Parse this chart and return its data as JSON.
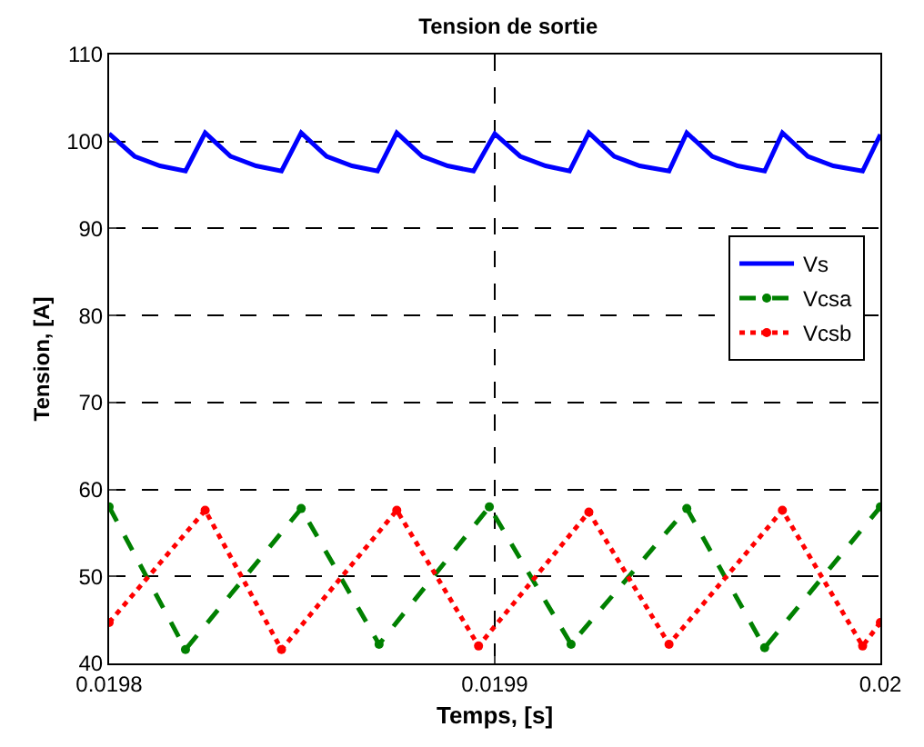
{
  "chart_data": {
    "type": "line",
    "title": "Tension de sortie",
    "xlabel": "Temps, [s]",
    "ylabel": "Tension, [A]",
    "xlim": [
      0.0198,
      0.02
    ],
    "xticks": [
      0.0198,
      0.0199,
      0.02
    ],
    "ylim": [
      40,
      110
    ],
    "yticks": [
      40,
      50,
      60,
      70,
      80,
      90,
      100,
      110
    ],
    "grid": true,
    "legend": "right",
    "series": [
      {
        "name": "Vs",
        "color": "#0000ff",
        "line_style": "solid",
        "marker": "none",
        "x": [
          0.0198,
          0.0198066,
          0.0198132,
          0.0198198,
          0.0198249,
          0.0198315,
          0.0198381,
          0.0198447,
          0.0198498,
          0.0198564,
          0.019863,
          0.0198696,
          0.0198746,
          0.0198812,
          0.0198878,
          0.0198945,
          0.0199,
          0.0199066,
          0.0199132,
          0.0199194,
          0.0199244,
          0.019931,
          0.0199376,
          0.0199452,
          0.0199498,
          0.0199564,
          0.019963,
          0.01997,
          0.0199746,
          0.0199812,
          0.0199878,
          0.0199954,
          0.02
        ],
        "values": [
          100.9,
          98.3,
          97.2,
          96.6,
          101,
          98.3,
          97.2,
          96.6,
          101,
          98.3,
          97.2,
          96.6,
          101,
          98.3,
          97.2,
          96.6,
          100.9,
          98.3,
          97.2,
          96.6,
          101,
          98.3,
          97.2,
          96.6,
          101,
          98.3,
          97.2,
          96.6,
          101,
          98.3,
          97.2,
          96.6,
          100.8
        ]
      },
      {
        "name": "Vcsa",
        "color": "#008000",
        "line_style": "dashed",
        "marker": "circle",
        "x": [
          0.0198,
          0.0198198,
          0.0198498,
          0.01987,
          0.0198986,
          0.0199198,
          0.0199498,
          0.01997,
          0.02
        ],
        "values": [
          58,
          41.6,
          57.8,
          42.2,
          58,
          42.2,
          57.8,
          41.8,
          58
        ]
      },
      {
        "name": "Vcsb",
        "color": "#ff0000",
        "line_style": "dotted",
        "marker": "circle",
        "x": [
          0.0198,
          0.0198249,
          0.0198447,
          0.0198746,
          0.0198958,
          0.0199244,
          0.0199452,
          0.0199746,
          0.0199954,
          0.02
        ],
        "values": [
          44.7,
          57.6,
          41.6,
          57.6,
          42,
          57.4,
          42.2,
          57.6,
          42,
          44.7
        ]
      }
    ]
  }
}
